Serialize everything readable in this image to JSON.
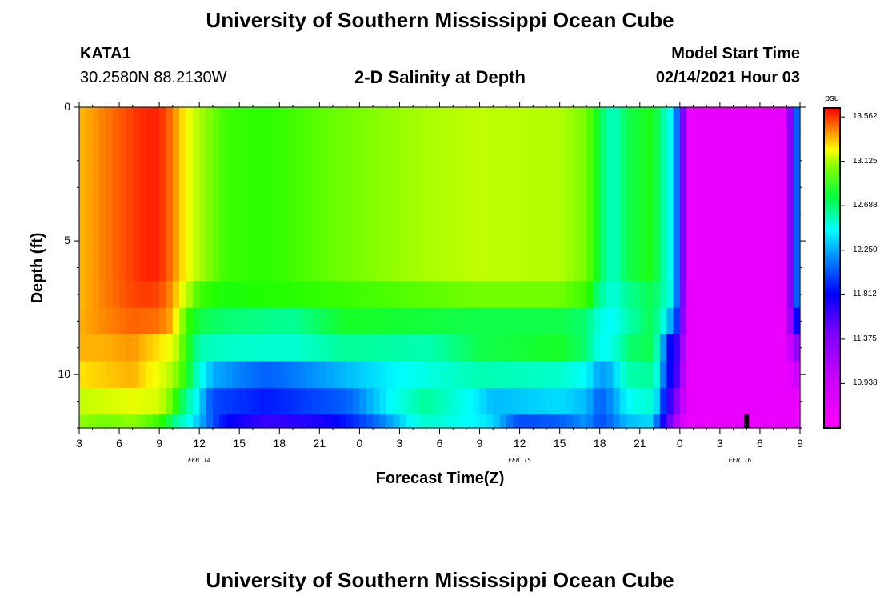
{
  "header": {
    "title": "University of Southern Mississippi Ocean Cube",
    "station": "KATA1",
    "coordinates": "30.2580N 88.2130W",
    "subtitle": "2-D Salinity at Depth",
    "model_start_label": "Model Start Time",
    "model_start_value": "02/14/2021 Hour 03"
  },
  "footer": {
    "title": "University of Southern Mississippi Ocean Cube"
  },
  "chart_data": {
    "type": "heatmap",
    "title": "2-D Salinity at Depth",
    "xlabel": "Forecast Time(Z)",
    "ylabel": "Depth (ft)",
    "x_tick_labels": [
      "3",
      "6",
      "9",
      "12",
      "15",
      "18",
      "21",
      "0",
      "3",
      "6",
      "9",
      "12",
      "15",
      "18",
      "21",
      "0",
      "3",
      "6",
      "9"
    ],
    "x_tick_hours": [
      0,
      3,
      6,
      9,
      12,
      15,
      18,
      21,
      24,
      27,
      30,
      33,
      36,
      39,
      42,
      45,
      48,
      51,
      54
    ],
    "date_labels": [
      {
        "text": "FEB 14",
        "hour": 9
      },
      {
        "text": "FEB 15",
        "hour": 33
      },
      {
        "text": "FEB 16",
        "hour": 49.5
      }
    ],
    "xlim": [
      0,
      54
    ],
    "y_tick_labels": [
      "0",
      "5",
      "10"
    ],
    "y_tick_values": [
      0,
      5,
      10
    ],
    "ylim": [
      0,
      12
    ],
    "colorbar": {
      "unit": "psu",
      "labels": [
        "13.562",
        "13.125",
        "12.688",
        "12.250",
        "11.812",
        "11.375",
        "10.938"
      ],
      "values": [
        13.562,
        13.125,
        12.688,
        12.25,
        11.812,
        11.375,
        10.938
      ],
      "range": [
        10.5,
        13.65
      ]
    },
    "depth_levels": [
      {
        "top": 0,
        "bottom": 6.5
      },
      {
        "top": 6.5,
        "bottom": 7.5
      },
      {
        "top": 7.5,
        "bottom": 8.5
      },
      {
        "top": 8.5,
        "bottom": 9.5
      },
      {
        "top": 9.5,
        "bottom": 10.5
      },
      {
        "top": 10.5,
        "bottom": 11.5
      },
      {
        "top": 11.5,
        "bottom": 12
      }
    ],
    "salinity_keyframes": [
      [
        [
          0,
          13.28
        ],
        [
          2,
          13.4
        ],
        [
          4,
          13.52
        ],
        [
          5,
          13.56
        ],
        [
          6,
          13.56
        ],
        [
          7,
          13.4
        ],
        [
          8,
          13.15
        ],
        [
          9,
          12.95
        ],
        [
          11,
          12.75
        ],
        [
          14,
          12.72
        ],
        [
          20,
          12.85
        ],
        [
          26,
          12.95
        ],
        [
          30,
          13.0
        ],
        [
          36,
          12.97
        ],
        [
          38,
          12.85
        ],
        [
          39,
          12.6
        ],
        [
          40,
          12.4
        ],
        [
          41,
          12.6
        ],
        [
          43,
          12.68
        ],
        [
          44.5,
          12.25
        ],
        [
          45,
          11.95
        ],
        [
          45.5,
          10.9
        ],
        [
          53,
          10.9
        ],
        [
          53.5,
          11.9
        ],
        [
          54,
          12.2
        ]
      ],
      [
        [
          0,
          13.28
        ],
        [
          2,
          13.4
        ],
        [
          4,
          13.5
        ],
        [
          5,
          13.52
        ],
        [
          6,
          13.5
        ],
        [
          7,
          13.35
        ],
        [
          8,
          13.0
        ],
        [
          9,
          12.75
        ],
        [
          11,
          12.68
        ],
        [
          20,
          12.75
        ],
        [
          30,
          12.85
        ],
        [
          36,
          12.85
        ],
        [
          38,
          12.75
        ],
        [
          39,
          12.5
        ],
        [
          40,
          12.35
        ],
        [
          41,
          12.5
        ],
        [
          43,
          12.6
        ],
        [
          44.5,
          12.3
        ],
        [
          45,
          11.9
        ],
        [
          45.5,
          10.9
        ],
        [
          53,
          10.9
        ],
        [
          53.5,
          11.9
        ],
        [
          54,
          12.2
        ]
      ],
      [
        [
          0,
          13.3
        ],
        [
          2,
          13.38
        ],
        [
          4,
          13.45
        ],
        [
          6,
          13.42
        ],
        [
          7,
          13.3
        ],
        [
          8,
          12.75
        ],
        [
          9,
          12.6
        ],
        [
          11,
          12.55
        ],
        [
          16,
          12.5
        ],
        [
          20,
          12.65
        ],
        [
          30,
          12.6
        ],
        [
          36,
          12.6
        ],
        [
          38,
          12.55
        ],
        [
          39,
          12.35
        ],
        [
          40,
          12.3
        ],
        [
          41,
          12.45
        ],
        [
          43,
          12.6
        ],
        [
          44.5,
          12.1
        ],
        [
          45,
          11.85
        ],
        [
          45.5,
          10.9
        ],
        [
          53,
          10.9
        ],
        [
          53.5,
          11.7
        ],
        [
          54,
          11.9
        ]
      ],
      [
        [
          0,
          13.3
        ],
        [
          2,
          13.3
        ],
        [
          4,
          13.35
        ],
        [
          6,
          13.2
        ],
        [
          7,
          13.1
        ],
        [
          8,
          12.72
        ],
        [
          9,
          12.45
        ],
        [
          11,
          12.4
        ],
        [
          16,
          12.38
        ],
        [
          20,
          12.5
        ],
        [
          26,
          12.45
        ],
        [
          30,
          12.6
        ],
        [
          36,
          12.65
        ],
        [
          38,
          12.55
        ],
        [
          39,
          12.3
        ],
        [
          40,
          12.35
        ],
        [
          41,
          12.55
        ],
        [
          43,
          12.6
        ],
        [
          44.5,
          11.7
        ],
        [
          45,
          11.6
        ],
        [
          45.5,
          10.9
        ],
        [
          53,
          10.9
        ],
        [
          53.5,
          11.3
        ],
        [
          54,
          11.4
        ]
      ],
      [
        [
          0,
          13.2
        ],
        [
          2,
          13.25
        ],
        [
          4,
          13.3
        ],
        [
          6,
          13.1
        ],
        [
          7,
          12.95
        ],
        [
          8,
          12.7
        ],
        [
          9,
          12.35
        ],
        [
          10,
          12.18
        ],
        [
          14,
          12.05
        ],
        [
          20,
          12.2
        ],
        [
          26,
          12.35
        ],
        [
          30,
          12.45
        ],
        [
          36,
          12.4
        ],
        [
          38,
          12.3
        ],
        [
          39,
          12.15
        ],
        [
          40,
          12.2
        ],
        [
          41,
          12.45
        ],
        [
          43,
          12.5
        ],
        [
          44.5,
          11.7
        ],
        [
          45,
          11.5
        ],
        [
          45.5,
          10.9
        ],
        [
          53,
          10.9
        ],
        [
          53.5,
          11.05
        ],
        [
          54,
          11.1
        ]
      ],
      [
        [
          0,
          13.0
        ],
        [
          2,
          13.05
        ],
        [
          4,
          13.1
        ],
        [
          6,
          13.05
        ],
        [
          7,
          12.8
        ],
        [
          8,
          12.5
        ],
        [
          9,
          12.25
        ],
        [
          10,
          12.0
        ],
        [
          14,
          11.9
        ],
        [
          20,
          12.05
        ],
        [
          26,
          12.5
        ],
        [
          31,
          12.2
        ],
        [
          36,
          12.25
        ],
        [
          38,
          12.2
        ],
        [
          39,
          12.05
        ],
        [
          40,
          12.15
        ],
        [
          41,
          12.3
        ],
        [
          43,
          12.4
        ],
        [
          44.5,
          11.5
        ],
        [
          45,
          11.3
        ],
        [
          45.5,
          10.9
        ],
        [
          54,
          10.9
        ]
      ],
      [
        [
          0,
          12.9
        ],
        [
          2,
          12.85
        ],
        [
          4,
          12.9
        ],
        [
          6,
          12.75
        ],
        [
          7,
          12.55
        ],
        [
          8,
          12.35
        ],
        [
          9,
          12.2
        ],
        [
          11,
          11.85
        ],
        [
          14,
          11.65
        ],
        [
          18,
          11.75
        ],
        [
          22,
          12.05
        ],
        [
          26,
          12.4
        ],
        [
          31,
          12.25
        ],
        [
          33,
          12.0
        ],
        [
          36,
          12.05
        ],
        [
          38,
          12.15
        ],
        [
          39,
          12.0
        ],
        [
          40,
          12.1
        ],
        [
          41,
          12.2
        ],
        [
          43,
          12.25
        ],
        [
          44.5,
          11.3
        ],
        [
          45,
          11.1
        ],
        [
          45.5,
          10.9
        ],
        [
          54,
          10.9
        ]
      ]
    ],
    "markers": [
      {
        "hour": 50,
        "depth_top": 11.5,
        "depth_bottom": 12
      }
    ]
  }
}
